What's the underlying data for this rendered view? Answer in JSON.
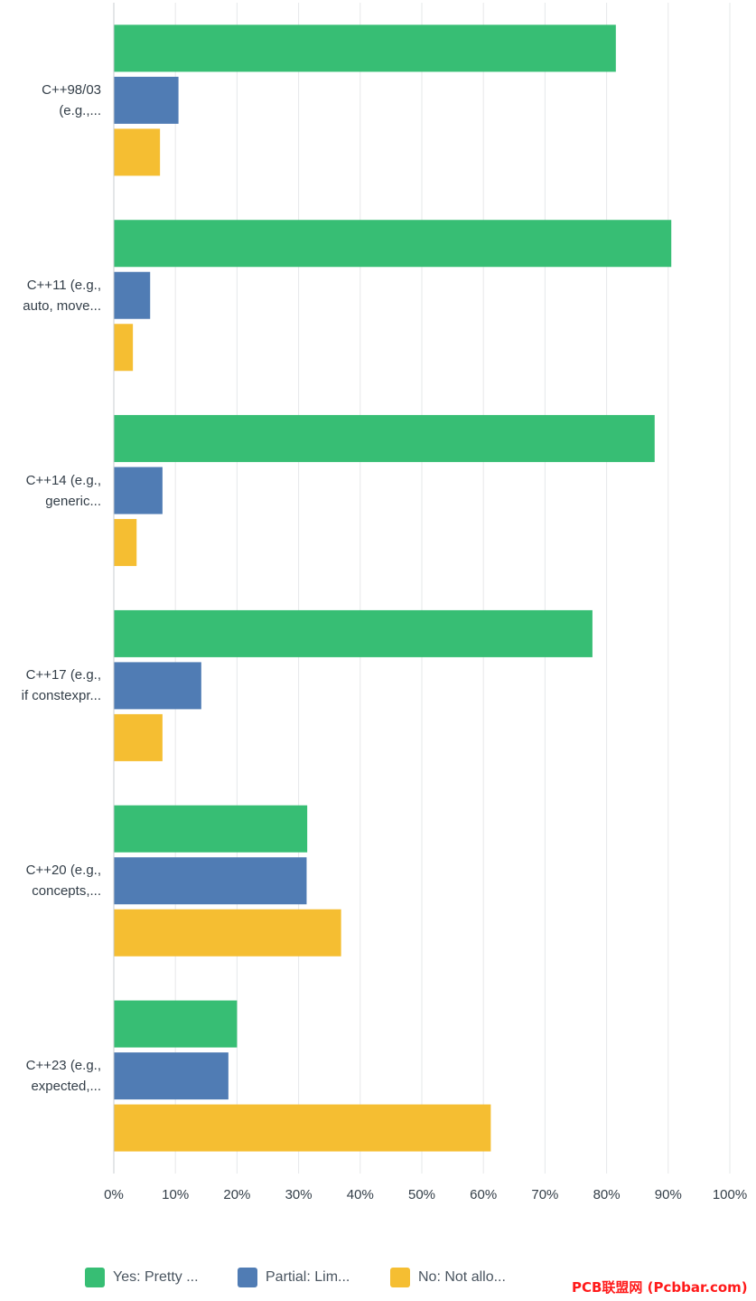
{
  "chart_data": {
    "type": "bar",
    "orientation": "horizontal",
    "categories": [
      [
        "C++98/03",
        "(e.g.,..."
      ],
      [
        "C++11 (e.g.,",
        "auto, move..."
      ],
      [
        "C++14 (e.g.,",
        "generic..."
      ],
      [
        "C++17 (e.g.,",
        "if constexpr..."
      ],
      [
        "C++20 (e.g.,",
        "concepts,..."
      ],
      [
        "C++23 (e.g.,",
        "expected,..."
      ]
    ],
    "series": [
      {
        "name": "Yes: Pretty ...",
        "color": "#37be74",
        "values": [
          81.5,
          90.5,
          87.8,
          77.7,
          31.4,
          20.0
        ]
      },
      {
        "name": "Partial: Lim...",
        "color": "#507cb4",
        "values": [
          10.5,
          5.9,
          7.9,
          14.2,
          31.3,
          18.6
        ]
      },
      {
        "name": "No: Not allo...",
        "color": "#f5be32",
        "values": [
          7.5,
          3.1,
          3.7,
          7.9,
          36.9,
          61.2
        ]
      }
    ],
    "xlim": [
      0,
      100
    ],
    "xticks": [
      "0%",
      "10%",
      "20%",
      "30%",
      "40%",
      "50%",
      "60%",
      "70%",
      "80%",
      "90%",
      "100%"
    ],
    "grid": true,
    "legend_position": "bottom"
  },
  "watermark": "PCB联盟网 (Pcbbar.com)"
}
